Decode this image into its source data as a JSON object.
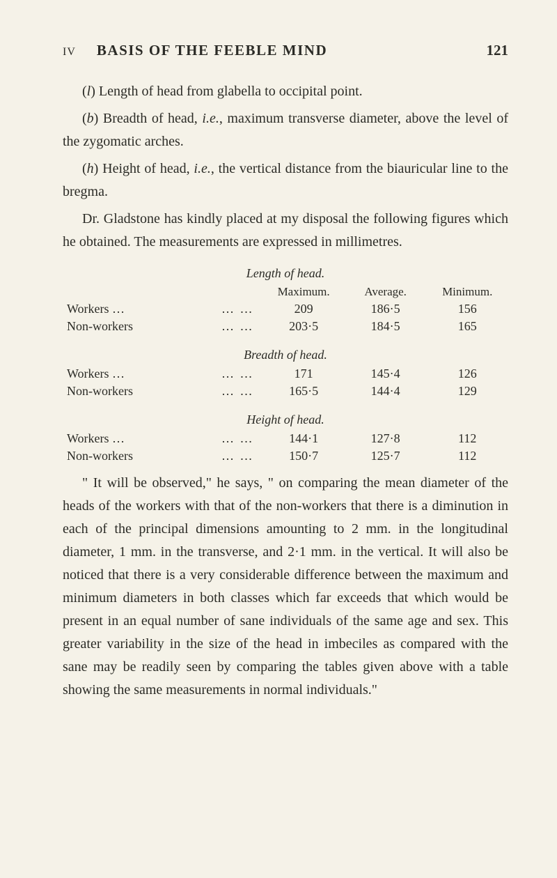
{
  "header": {
    "roman": "IV",
    "title": "BASIS OF THE FEEBLE MIND",
    "page": "121"
  },
  "paragraphs": {
    "p1_pre": "(",
    "p1_letter": "l",
    "p1_post": ") Length of head from glabella to occipital point.",
    "p2_pre": "(",
    "p2_letter": "b",
    "p2_post": ") Breadth of head, ",
    "p2_ie": "i.e.",
    "p2_tail": ", maximum transverse diameter, above the level of the zygomatic arches.",
    "p3_pre": "(",
    "p3_letter": "h",
    "p3_post": ") Height of head, ",
    "p3_ie": "i.e.",
    "p3_tail": ", the vertical distance from the biauricular line to the bregma.",
    "p4": "Dr. Gladstone has kindly placed at my disposal the following figures which he obtained. The measurements are expressed in millimetres.",
    "p5": "\" It will be observed,\" he says, \" on comparing the mean diameter of the heads of the workers with that of the non-workers that there is a diminution in each of the principal dimensions amounting to 2 mm. in the longitudinal diameter, 1 mm. in the transverse, and 2·1 mm. in the vertical. It will also be noticed that there is a very considerable difference between the maximum and minimum diameters in both classes which far exceeds that which would be present in an equal number of sane individuals of the same age and sex. This greater variability in the size of the head in imbeciles as compared with the sane may be readily seen by comparing the tables given above with a table showing the same measurements in normal individuals.\""
  },
  "table": {
    "col_headers": [
      "Maximum.",
      "Average.",
      "Minimum."
    ],
    "row_labels": {
      "workers": "Workers  …",
      "nonworkers": "Non-workers"
    },
    "dots": "…   …",
    "sections": [
      {
        "title": "Length of head.",
        "rows": [
          {
            "label_key": "workers",
            "values": [
              "209",
              "186·5",
              "156"
            ]
          },
          {
            "label_key": "nonworkers",
            "values": [
              "203·5",
              "184·5",
              "165"
            ]
          }
        ]
      },
      {
        "title": "Breadth of head.",
        "rows": [
          {
            "label_key": "workers",
            "values": [
              "171",
              "145·4",
              "126"
            ]
          },
          {
            "label_key": "nonworkers",
            "values": [
              "165·5",
              "144·4",
              "129"
            ]
          }
        ]
      },
      {
        "title": "Height of head.",
        "rows": [
          {
            "label_key": "workers",
            "values": [
              "144·1",
              "127·8",
              "112"
            ]
          },
          {
            "label_key": "nonworkers",
            "values": [
              "150·7",
              "125·7",
              "112"
            ]
          }
        ]
      }
    ]
  },
  "style": {
    "background_color": "#f5f2e8",
    "text_color": "#2b2b26",
    "body_font_family": "Georgia, 'Times New Roman', serif",
    "body_fontsize": 20,
    "table_fontsize": 18,
    "header_title_fontsize": 21
  }
}
